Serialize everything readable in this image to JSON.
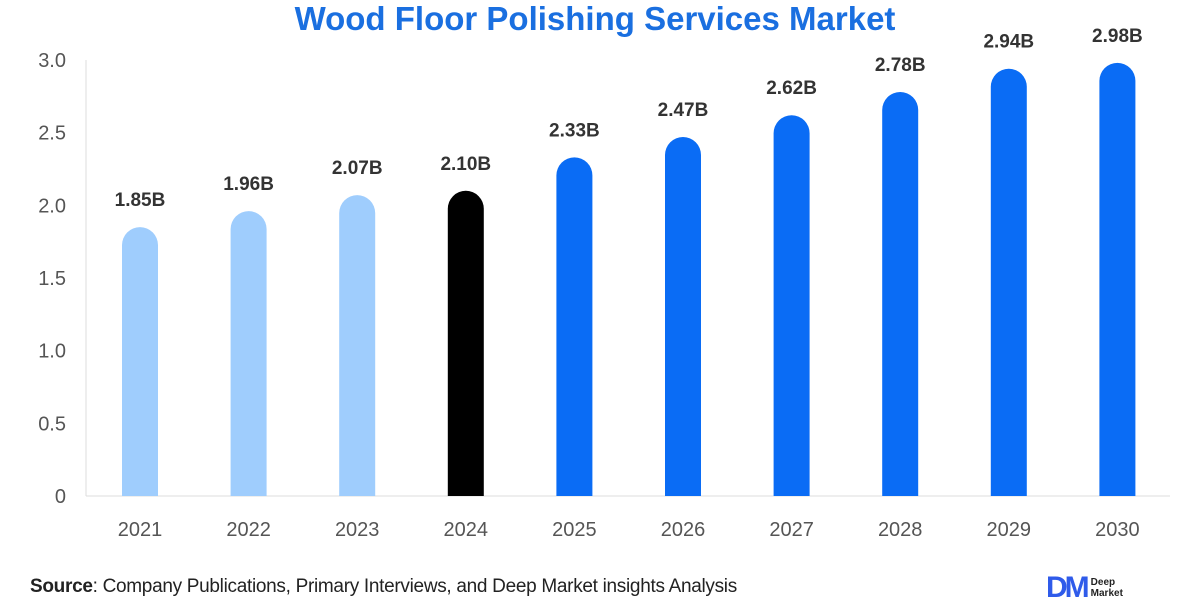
{
  "chart_data": {
    "type": "bar",
    "title": "Wood Floor Polishing Services Market",
    "categories": [
      "2021",
      "2022",
      "2023",
      "2024",
      "2025",
      "2026",
      "2027",
      "2028",
      "2029",
      "2030"
    ],
    "values": [
      1.85,
      1.96,
      2.07,
      2.1,
      2.33,
      2.47,
      2.62,
      2.78,
      2.94,
      2.98
    ],
    "data_labels": [
      "1.85B",
      "1.96B",
      "2.07B",
      "2.10B",
      "2.33B",
      "2.47B",
      "2.62B",
      "2.78B",
      "2.94B",
      "2.98B"
    ],
    "yticks": [
      "0",
      "0.5",
      "1.0",
      "1.5",
      "2.0",
      "2.5",
      "3.0"
    ],
    "ylim": [
      0,
      3.0
    ],
    "xlabel": "",
    "ylabel": "",
    "grid": false,
    "colors": {
      "historical": "#9fcdfd",
      "current": "#000000",
      "forecast": "#0a6cf5"
    },
    "bar_color_groups": [
      "historical",
      "historical",
      "historical",
      "current",
      "forecast",
      "forecast",
      "forecast",
      "forecast",
      "forecast",
      "forecast"
    ]
  },
  "footer": {
    "source_label": "Source",
    "source_text": ": Company Publications, Primary Interviews, and Deep Market insights Analysis"
  },
  "logo": {
    "mark": "DM",
    "line1": "Deep",
    "line2": "Market"
  }
}
